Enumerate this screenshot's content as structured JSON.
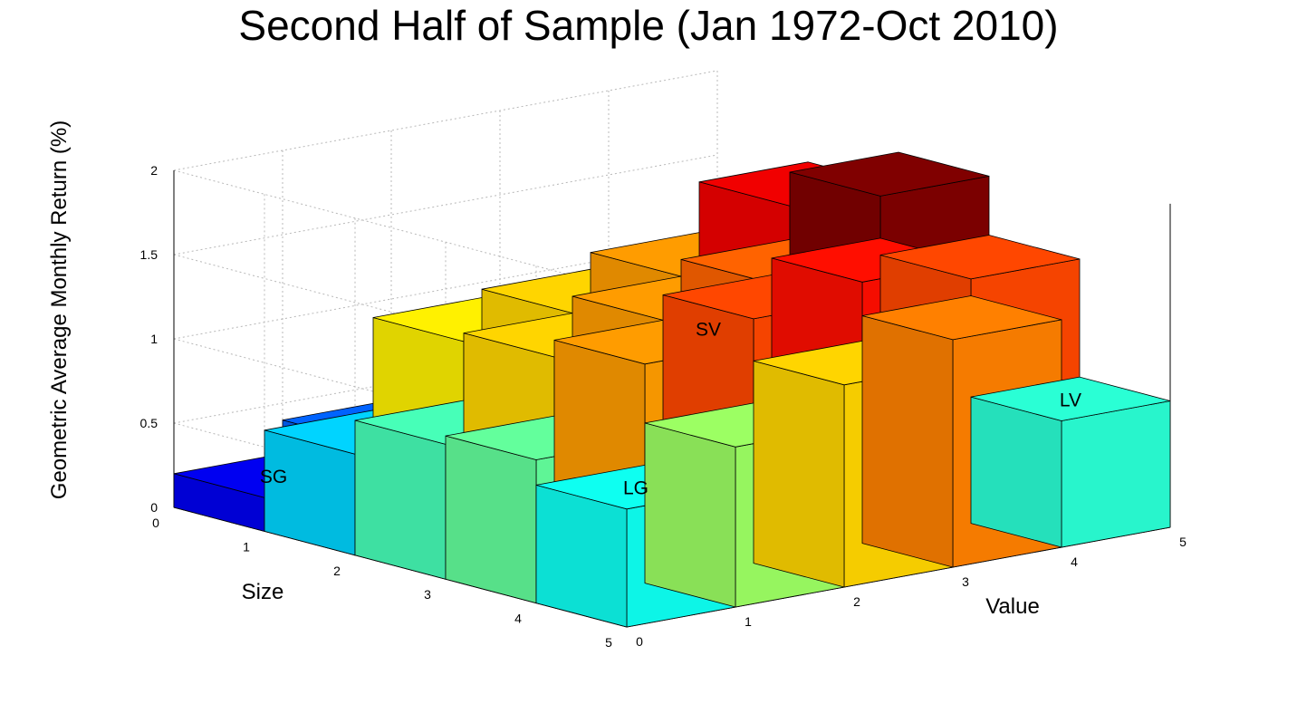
{
  "chart_data": {
    "type": "bar3d",
    "title": "Second Half of Sample (Jan 1972-Oct 2010)",
    "xlabel": "Size",
    "ylabel": "Value",
    "zlabel": "Geometric Average Monthly Return (%)",
    "size_ticks": [
      "0",
      "1",
      "2",
      "3",
      "4",
      "5"
    ],
    "value_ticks": [
      "0",
      "1",
      "2",
      "3",
      "4",
      "5"
    ],
    "z_ticks": [
      "0",
      "0.5",
      "1",
      "1.5",
      "2"
    ],
    "zlim": [
      0,
      2
    ],
    "grid": true,
    "colormap": "jet",
    "z_matrix": [
      [
        0.2,
        0.4,
        0.5,
        0.7,
        0.6
      ],
      [
        0.6,
        1.15,
        1.2,
        1.3,
        1.6
      ],
      [
        0.8,
        1.2,
        1.3,
        1.4,
        1.8
      ],
      [
        0.85,
        1.3,
        1.45,
        1.55,
        1.45
      ],
      [
        0.7,
        0.95,
        1.2,
        1.35,
        0.75
      ]
    ],
    "annotations": [
      {
        "text": "SG",
        "size": 0,
        "value": 0
      },
      {
        "text": "LG",
        "size": 4,
        "value": 0
      },
      {
        "text": "SV",
        "size": 0,
        "value": 4
      },
      {
        "text": "LV",
        "size": 4,
        "value": 4
      }
    ]
  }
}
